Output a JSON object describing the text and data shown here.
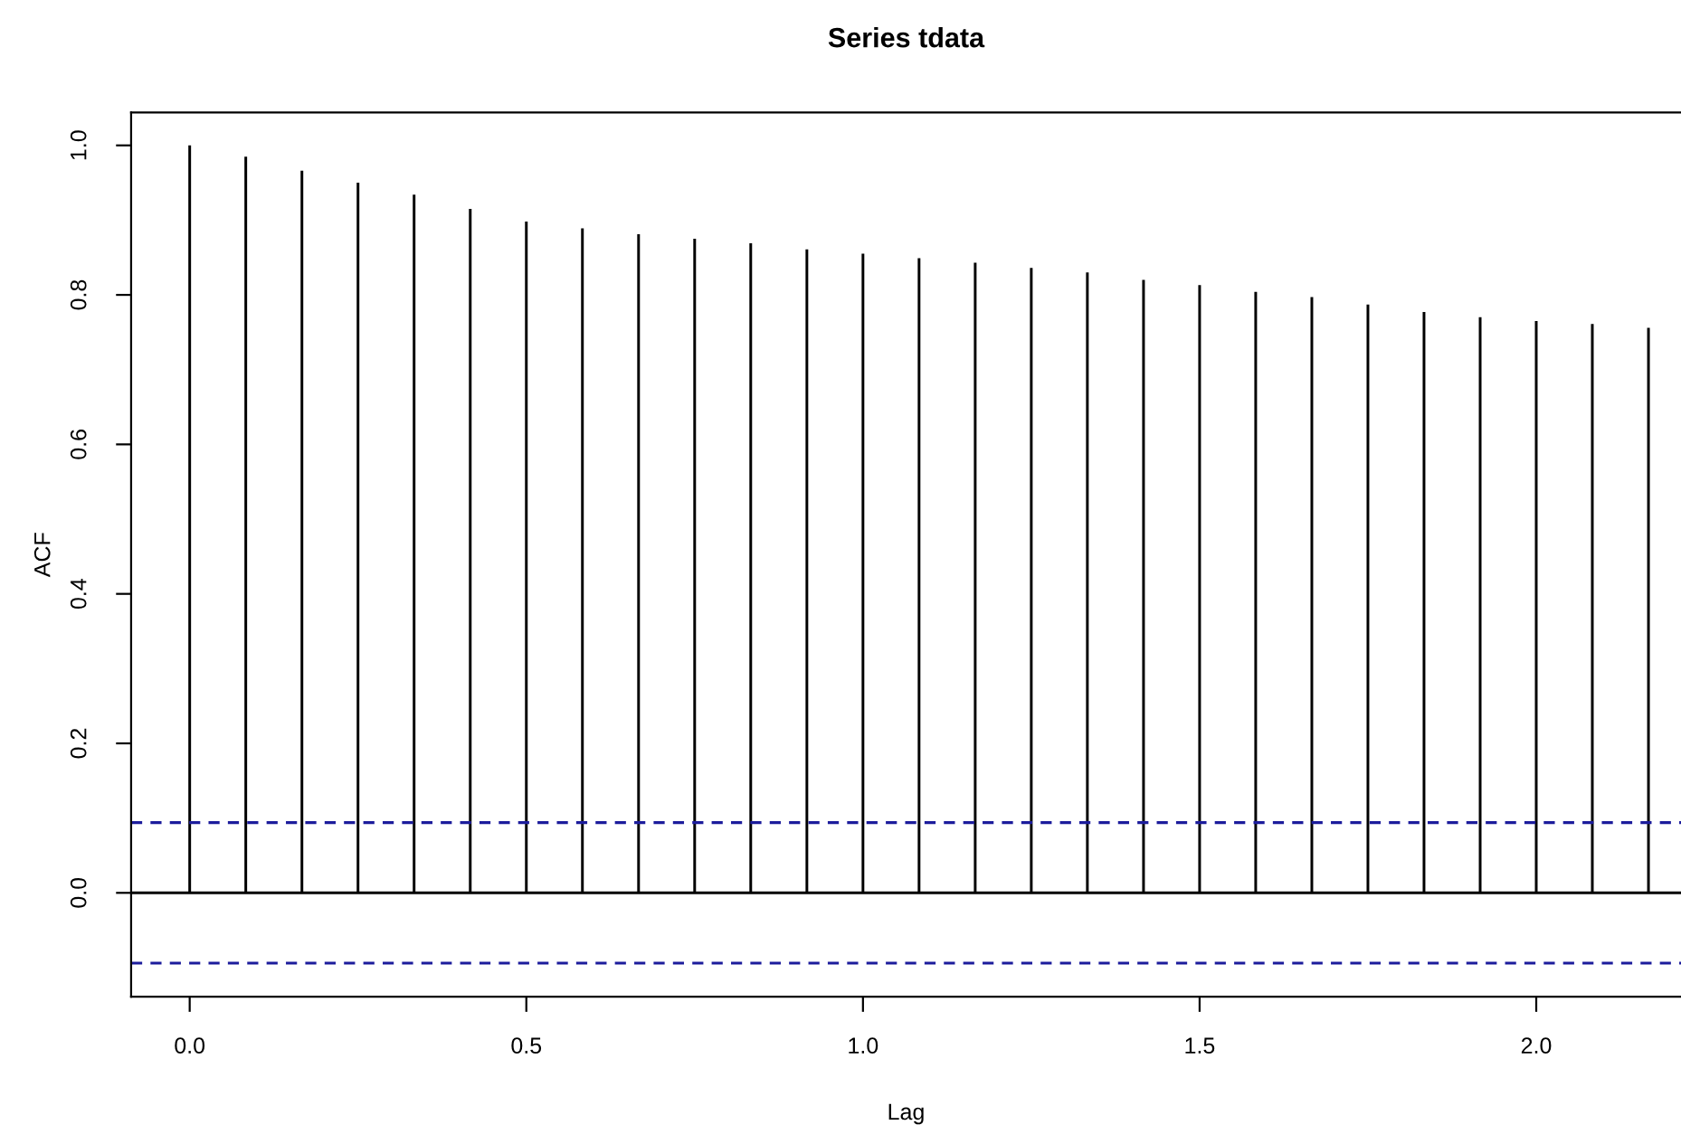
{
  "chart_data": {
    "type": "bar",
    "title": "Series tdata",
    "xlabel": "Lag",
    "ylabel": "ACF",
    "x": [
      0,
      0.0833,
      0.1667,
      0.25,
      0.3333,
      0.4167,
      0.5,
      0.5833,
      0.6667,
      0.75,
      0.8333,
      0.9167,
      1.0,
      1.0833,
      1.1667,
      1.25,
      1.3333,
      1.4167,
      1.5,
      1.5833,
      1.6667,
      1.75,
      1.8333,
      1.9167,
      2.0,
      2.0833,
      2.1667
    ],
    "series": [
      {
        "color": "#000000",
        "values": [
          1.0,
          0.985,
          0.966,
          0.95,
          0.934,
          0.915,
          0.898,
          0.889,
          0.881,
          0.875,
          0.869,
          0.861,
          0.855,
          0.849,
          0.843,
          0.836,
          0.83,
          0.82,
          0.813,
          0.804,
          0.797,
          0.787,
          0.777,
          0.77,
          0.765,
          0.761,
          0.756
        ]
      }
    ],
    "xlim": [
      -0.087,
      2.215
    ],
    "ylim": [
      -0.139,
      1.044
    ],
    "xticks": [
      {
        "value": 0,
        "label": "0.0"
      },
      {
        "value": 0.5,
        "label": "0.5"
      },
      {
        "value": 1,
        "label": "1.0"
      },
      {
        "value": 1.5,
        "label": "1.5"
      },
      {
        "value": 2,
        "label": "2.0"
      }
    ],
    "yticks": [
      {
        "value": 0,
        "label": "0.0"
      },
      {
        "value": 0.2,
        "label": "0.2"
      },
      {
        "value": 0.4,
        "label": "0.4"
      },
      {
        "value": 0.6,
        "label": "0.6"
      },
      {
        "value": 0.8,
        "label": "0.8"
      },
      {
        "value": 1,
        "label": "1.0"
      }
    ],
    "ref_lines": [
      {
        "axis": "y",
        "value": 0,
        "color": "#000000",
        "line_style": "solid"
      },
      {
        "axis": "y",
        "value": 0.094,
        "color": "#1c1c9c",
        "line_style": "dashed"
      },
      {
        "axis": "y",
        "value": -0.094,
        "color": "#1c1c9c",
        "line_style": "dashed"
      }
    ],
    "legend": false
  }
}
